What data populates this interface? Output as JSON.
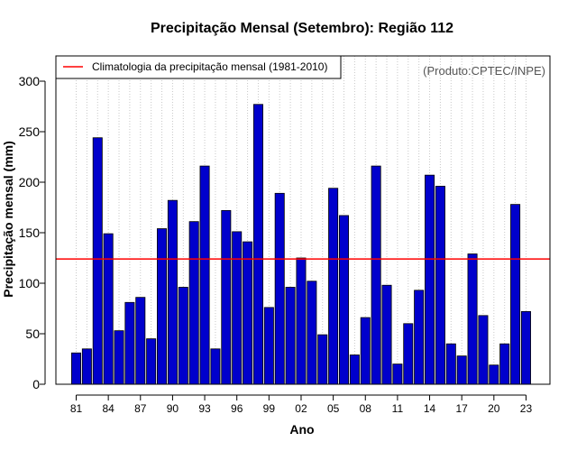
{
  "chart_data": {
    "type": "bar",
    "title": "Precipitação Mensal (Setembro): Região 112",
    "xlabel": "Ano",
    "ylabel": "Precipitação mensal (mm)",
    "credit": "(Produto:CPTEC/INPE)",
    "ylim": [
      0,
      325
    ],
    "yticks": [
      "0",
      "50",
      "100",
      "150",
      "200",
      "250",
      "300"
    ],
    "years": [
      1981,
      1982,
      1983,
      1984,
      1985,
      1986,
      1987,
      1988,
      1989,
      1990,
      1991,
      1992,
      1993,
      1994,
      1995,
      1996,
      1997,
      1998,
      1999,
      2000,
      2001,
      2002,
      2003,
      2004,
      2005,
      2006,
      2007,
      2008,
      2009,
      2010,
      2011,
      2012,
      2013,
      2014,
      2015,
      2016,
      2017,
      2018,
      2019,
      2020,
      2021,
      2022,
      2023
    ],
    "xtick_labels": [
      "81",
      "84",
      "87",
      "90",
      "93",
      "96",
      "99",
      "02",
      "05",
      "08",
      "11",
      "14",
      "17",
      "20",
      "23"
    ],
    "values": [
      31,
      35,
      244,
      149,
      53,
      81,
      86,
      45,
      154,
      182,
      96,
      161,
      216,
      35,
      172,
      151,
      141,
      277,
      76,
      189,
      96,
      125,
      102,
      49,
      194,
      167,
      29,
      66,
      216,
      98,
      20,
      60,
      93,
      207,
      196,
      40,
      28,
      129,
      68,
      19,
      40,
      178,
      72
    ],
    "series_name": "Precipitação mensal",
    "bar_color": "#0000cc",
    "climatology": {
      "label": "Climatologia da precipitação mensal (1981-2010)",
      "value": 124,
      "color": "#ff0000"
    }
  }
}
